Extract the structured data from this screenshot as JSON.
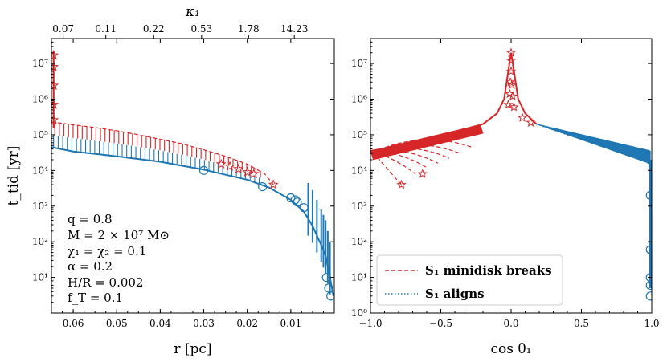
{
  "chart_data": [
    {
      "type": "line",
      "panel": "left",
      "xlabel": "r [pc]",
      "ylabel": "t_tid [yr]",
      "x_axis_reversed": true,
      "xlim": [
        0.065,
        0.0
      ],
      "ylim_log10": [
        0,
        7.7
      ],
      "x_ticks": [
        0.06,
        0.05,
        0.04,
        0.03,
        0.02,
        0.01
      ],
      "x_tick_labels": [
        "0.06",
        "0.05",
        "0.04",
        "0.03",
        "0.02",
        "0.01"
      ],
      "y_ticks_log10": [
        1,
        2,
        3,
        4,
        5,
        6,
        7
      ],
      "y_tick_labels": [
        "10¹",
        "10²",
        "10³",
        "10⁴",
        "10⁵",
        "10⁶",
        "10⁷"
      ],
      "top_axis": {
        "label": "κ₁",
        "tick_positions_r": [
          0.0623,
          0.0525,
          0.0415,
          0.0305,
          0.0197,
          0.0092
        ],
        "tick_labels": [
          "0.07",
          "0.11",
          "0.22",
          "0.53",
          "1.78",
          "14.23"
        ]
      },
      "parameters": [
        "q = 0.8",
        "M = 2 × 10⁷ M⊙",
        "χ₁ = χ₂ = 0.1",
        "α = 0.2",
        "H/R = 0.002",
        "f_T = 0.1"
      ],
      "series": [
        {
          "name": "S1 minidisk breaks (envelope)",
          "style": "dashed",
          "color": "#d62728",
          "marker": "star",
          "x": [
            0.065,
            0.06,
            0.055,
            0.05,
            0.045,
            0.04,
            0.035,
            0.03,
            0.025,
            0.02,
            0.016,
            0.014
          ],
          "y": [
            230000,
            190000,
            160000,
            130000,
            100000,
            75000,
            56000,
            38000,
            25000,
            15000,
            8000,
            4000
          ]
        },
        {
          "name": "S1 aligns (envelope)",
          "style": "solid",
          "color": "#1f77b4",
          "marker": "circle",
          "x": [
            0.065,
            0.06,
            0.05,
            0.04,
            0.03,
            0.02,
            0.015,
            0.01,
            0.007,
            0.005,
            0.003,
            0.002,
            0.001,
            0.0002
          ],
          "y": [
            45000,
            34000,
            25000,
            17500,
            10500,
            5500,
            3300,
            1500,
            700,
            280,
            80,
            40,
            10,
            3
          ]
        }
      ]
    },
    {
      "type": "line",
      "panel": "right",
      "xlabel": "cos θ₁",
      "xlim": [
        -1.0,
        1.0
      ],
      "ylim_log10": [
        0,
        7.7
      ],
      "x_ticks": [
        -1.0,
        -0.5,
        0.0,
        0.5,
        1.0
      ],
      "x_tick_labels": [
        "−1.0",
        "−0.5",
        "0.0",
        "0.5",
        "1.0"
      ],
      "y_ticks_log10": [
        0,
        1,
        2,
        3,
        4,
        5,
        6,
        7
      ],
      "y_tick_labels": [
        "10⁰",
        "10¹",
        "10²",
        "10³",
        "10⁴",
        "10⁵",
        "10⁶",
        "10⁷"
      ],
      "legend": [
        {
          "label": "S₁ minidisk breaks",
          "style": "dashed",
          "color": "#d62728"
        },
        {
          "label": "S₁ aligns",
          "style": "dotted",
          "color": "#1f77b4"
        }
      ],
      "legend_position": "lower-left",
      "series": [
        {
          "name": "S₁ minidisk breaks",
          "style": "dashed",
          "color": "#d62728",
          "marker": "star",
          "x": [
            -1.0,
            -0.8,
            -0.6,
            -0.4,
            -0.2,
            -0.1,
            -0.05,
            0.0,
            0.05,
            0.1,
            0.18
          ],
          "y": [
            35000,
            50000,
            75000,
            120000,
            200000,
            400000,
            1000000,
            20000000,
            1000000,
            400000,
            200000
          ]
        },
        {
          "name": "S₁ aligns",
          "style": "dotted",
          "color": "#1f77b4",
          "marker": "circle",
          "x": [
            0.18,
            0.4,
            0.6,
            0.8,
            0.95,
            0.99,
            1.0
          ],
          "y": [
            200000,
            100000,
            60000,
            40000,
            30000,
            10000,
            3
          ]
        }
      ]
    }
  ]
}
